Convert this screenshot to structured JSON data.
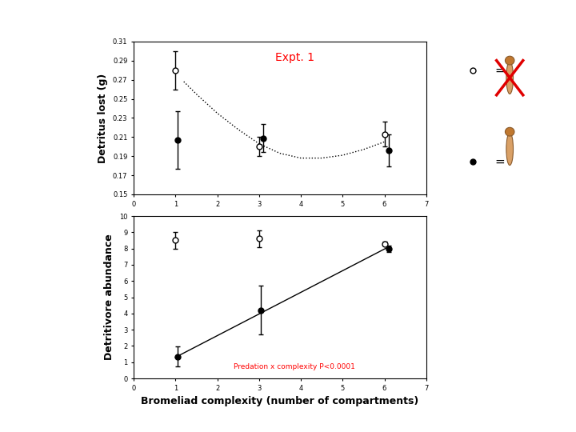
{
  "chart_data": [
    {
      "type": "scatter",
      "ylabel": "Detritus lost (g)",
      "annotations": [
        {
          "text": "Expt. 1",
          "color": "#ff0000"
        }
      ],
      "xlim": [
        0,
        7
      ],
      "xticks": [
        0,
        1,
        2,
        3,
        4,
        5,
        6,
        7
      ],
      "ylim": [
        0.15,
        0.31
      ],
      "yticks": [
        0.15,
        0.17,
        0.19,
        0.21,
        0.23,
        0.25,
        0.27,
        0.29,
        0.31
      ],
      "legend": "upper left",
      "series": [
        {
          "name": "=",
          "type": "scatter",
          "marker": "o",
          "color": "#ffffff",
          "x": [
            1,
            3,
            6
          ],
          "values": [
            0.28,
            0.2,
            0.213
          ],
          "errors": [
            0.02,
            0.01,
            0.013
          ]
        },
        {
          "name": "=",
          "type": "scatter",
          "marker": "o",
          "color": "#000000",
          "x": [
            1.05,
            3.1,
            6.1
          ],
          "values": [
            0.207,
            0.209,
            0.196
          ],
          "errors": [
            0.03,
            0.015,
            0.017
          ]
        },
        {
          "type": "line",
          "line_style": "dotted",
          "color": "#000000",
          "x": [
            1.2,
            1.5,
            2,
            2.5,
            3,
            3.5,
            4,
            4.5,
            5,
            5.5,
            6
          ],
          "values": [
            0.268,
            0.255,
            0.235,
            0.218,
            0.203,
            0.193,
            0.188,
            0.188,
            0.191,
            0.197,
            0.205
          ]
        }
      ]
    },
    {
      "type": "scatter",
      "xlabel": "Bromeliad complexity (number of compartments)",
      "ylabel": "Detritivore abundance",
      "annotations": [
        {
          "text": "Predation x complexity P<0.0001",
          "color": "#ff0000"
        }
      ],
      "xlim": [
        0,
        7
      ],
      "xticks": [
        0,
        1,
        2,
        3,
        4,
        5,
        6,
        7
      ],
      "ylim": [
        0,
        10
      ],
      "yticks": [
        0,
        1,
        2,
        3,
        4,
        5,
        6,
        7,
        8,
        9,
        10
      ],
      "series": [
        {
          "type": "scatter",
          "marker": "o",
          "color": "#ffffff",
          "x": [
            1,
            3,
            6
          ],
          "values": [
            8.5,
            8.6,
            8.3
          ],
          "errors": [
            0.5,
            0.5,
            0.1
          ]
        },
        {
          "type": "scatter",
          "marker": "o",
          "color": "#000000",
          "x": [
            1.05,
            3.05,
            6.1
          ],
          "values": [
            1.35,
            4.2,
            8.0
          ],
          "errors": [
            0.6,
            1.5,
            0.2
          ]
        },
        {
          "type": "line",
          "line_style": "solid",
          "color": "#000000",
          "x": [
            1,
            6.1
          ],
          "values": [
            1.3,
            8.1
          ]
        }
      ]
    }
  ]
}
